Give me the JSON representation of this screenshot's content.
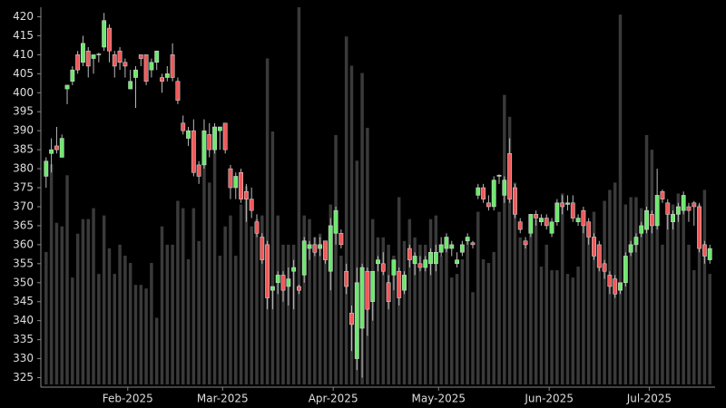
{
  "chart_data": {
    "type": "candlestick",
    "up_color": "#6ee86e",
    "down_color": "#f05a5a",
    "wick_color": "#bbbbbb",
    "volume_color": "#3a3a3a",
    "ylim": [
      322.5,
      422.5
    ],
    "yticks": [
      325,
      330,
      335,
      340,
      345,
      350,
      355,
      360,
      365,
      370,
      375,
      380,
      385,
      390,
      395,
      400,
      405,
      410,
      415,
      420
    ],
    "volume_lim": [
      0,
      104
    ],
    "xlim": [
      -1,
      127
    ],
    "xticks": [
      {
        "value": 15.5,
        "label": "Feb-2025"
      },
      {
        "value": 33.5,
        "label": "Mar-2025"
      },
      {
        "value": 54.5,
        "label": "Apr-2025"
      },
      {
        "value": 74.5,
        "label": "May-2025"
      },
      {
        "value": 95.5,
        "label": "Jun-2025"
      },
      {
        "value": 114.5,
        "label": "Jul-2025"
      }
    ],
    "candles": [
      {
        "o": 378,
        "h": 383,
        "l": 375,
        "c": 382,
        "v": 37
      },
      {
        "o": 384,
        "h": 388,
        "l": 379,
        "c": 385,
        "v": 61
      },
      {
        "o": 386,
        "h": 391,
        "l": 384,
        "c": 385,
        "v": 45
      },
      {
        "o": 383,
        "h": 389,
        "l": 383,
        "c": 388,
        "v": 44
      },
      {
        "o": 401,
        "h": 402,
        "l": 397,
        "c": 402,
        "v": 58
      },
      {
        "o": 403,
        "h": 407,
        "l": 402,
        "c": 406,
        "v": 30
      },
      {
        "o": 410,
        "h": 411,
        "l": 405,
        "c": 406,
        "v": 42
      },
      {
        "o": 408,
        "h": 415,
        "l": 407,
        "c": 413,
        "v": 46
      },
      {
        "o": 411,
        "h": 412,
        "l": 404,
        "c": 407,
        "v": 46
      },
      {
        "o": 409,
        "h": 410,
        "l": 405,
        "c": 410,
        "v": 49
      },
      {
        "o": 410,
        "h": 410.5,
        "l": 408,
        "c": 410.2,
        "v": 31
      },
      {
        "o": 412,
        "h": 421,
        "l": 411,
        "c": 419,
        "v": 47
      },
      {
        "o": 417,
        "h": 418,
        "l": 408,
        "c": 411,
        "v": 38
      },
      {
        "o": 410,
        "h": 411,
        "l": 404,
        "c": 407,
        "v": 31
      },
      {
        "o": 411,
        "h": 412,
        "l": 406,
        "c": 408,
        "v": 39
      },
      {
        "o": 408,
        "h": 409,
        "l": 404,
        "c": 407,
        "v": 36
      },
      {
        "o": 401,
        "h": 406,
        "l": 401,
        "c": 403,
        "v": 34
      },
      {
        "o": 404,
        "h": 407,
        "l": 396,
        "c": 406,
        "v": 28
      },
      {
        "o": 410,
        "h": 410,
        "l": 407,
        "c": 409,
        "v": 28
      },
      {
        "o": 410,
        "h": 410,
        "l": 402,
        "c": 403,
        "v": 27
      },
      {
        "o": 406,
        "h": 409,
        "l": 404,
        "c": 408,
        "v": 34
      },
      {
        "o": 408,
        "h": 411,
        "l": 406,
        "c": 411,
        "v": 19
      },
      {
        "o": 404,
        "h": 405,
        "l": 400,
        "c": 403,
        "v": 44
      },
      {
        "o": 404,
        "h": 407,
        "l": 403,
        "c": 405,
        "v": 39
      },
      {
        "o": 410,
        "h": 413,
        "l": 403,
        "c": 404,
        "v": 39
      },
      {
        "o": 403,
        "h": 404,
        "l": 397,
        "c": 398,
        "v": 51
      },
      {
        "o": 392,
        "h": 394,
        "l": 389,
        "c": 390,
        "v": 49
      },
      {
        "o": 388,
        "h": 391,
        "l": 386,
        "c": 390,
        "v": 35
      },
      {
        "o": 390,
        "h": 393,
        "l": 378,
        "c": 379,
        "v": 49
      },
      {
        "o": 381,
        "h": 382,
        "l": 376,
        "c": 378,
        "v": 40
      },
      {
        "o": 381,
        "h": 393,
        "l": 380,
        "c": 390,
        "v": 67
      },
      {
        "o": 389,
        "h": 392,
        "l": 383,
        "c": 385,
        "v": 56
      },
      {
        "o": 385,
        "h": 392,
        "l": 384,
        "c": 391,
        "v": 65
      },
      {
        "o": 390,
        "h": 391,
        "l": 385,
        "c": 391,
        "v": 36
      },
      {
        "o": 392,
        "h": 392,
        "l": 384,
        "c": 385,
        "v": 44
      },
      {
        "o": 380,
        "h": 381,
        "l": 372,
        "c": 375,
        "v": 47
      },
      {
        "o": 375,
        "h": 379,
        "l": 372,
        "c": 378,
        "v": 36
      },
      {
        "o": 379,
        "h": 380,
        "l": 371,
        "c": 372,
        "v": 50
      },
      {
        "o": 374,
        "h": 376,
        "l": 366,
        "c": 372,
        "v": 55
      },
      {
        "o": 372,
        "h": 375,
        "l": 367,
        "c": 369,
        "v": 44
      },
      {
        "o": 366,
        "h": 368,
        "l": 362,
        "c": 363,
        "v": 46
      },
      {
        "o": 362,
        "h": 363,
        "l": 355,
        "c": 356,
        "v": 47
      },
      {
        "o": 360,
        "h": 361,
        "l": 343,
        "c": 346,
        "v": 90
      },
      {
        "o": 348,
        "h": 349,
        "l": 343,
        "c": 349,
        "v": 70
      },
      {
        "o": 350,
        "h": 353,
        "l": 347,
        "c": 352,
        "v": 47
      },
      {
        "o": 352,
        "h": 353,
        "l": 345,
        "c": 348,
        "v": 39
      },
      {
        "o": 349,
        "h": 354,
        "l": 344,
        "c": 351,
        "v": 39
      },
      {
        "o": 353,
        "h": 356,
        "l": 343,
        "c": 354,
        "v": 39
      },
      {
        "o": 349,
        "h": 349.5,
        "l": 347,
        "c": 348,
        "v": 104
      },
      {
        "o": 352,
        "h": 362,
        "l": 350,
        "c": 361,
        "v": 47
      },
      {
        "o": 359,
        "h": 361,
        "l": 356,
        "c": 360,
        "v": 46
      },
      {
        "o": 360,
        "h": 362,
        "l": 357,
        "c": 358,
        "v": 41
      },
      {
        "o": 359,
        "h": 362,
        "l": 357,
        "c": 360,
        "v": 42
      },
      {
        "o": 361,
        "h": 361,
        "l": 355,
        "c": 356,
        "v": 40
      },
      {
        "o": 353,
        "h": 367,
        "l": 348,
        "c": 365,
        "v": 50
      },
      {
        "o": 363,
        "h": 370,
        "l": 360,
        "c": 369,
        "v": 69
      },
      {
        "o": 363,
        "h": 364,
        "l": 359,
        "c": 360,
        "v": 36
      },
      {
        "o": 353,
        "h": 355,
        "l": 347,
        "c": 349,
        "v": 96
      },
      {
        "o": 342,
        "h": 344,
        "l": 332,
        "c": 339,
        "v": 88
      },
      {
        "o": 330,
        "h": 354,
        "l": 327,
        "c": 350,
        "v": 62
      },
      {
        "o": 338,
        "h": 355,
        "l": 325,
        "c": 354,
        "v": 86
      },
      {
        "o": 353,
        "h": 354,
        "l": 336,
        "c": 343,
        "v": 71
      },
      {
        "o": 345,
        "h": 353,
        "l": 340,
        "c": 353,
        "v": 46
      },
      {
        "o": 355,
        "h": 357,
        "l": 353,
        "c": 356,
        "v": 41
      },
      {
        "o": 355,
        "h": 358,
        "l": 352,
        "c": 353,
        "v": 41
      },
      {
        "o": 350,
        "h": 352,
        "l": 343,
        "c": 345,
        "v": 39
      },
      {
        "o": 352,
        "h": 356,
        "l": 348,
        "c": 356,
        "v": 36
      },
      {
        "o": 353,
        "h": 354,
        "l": 344,
        "c": 346,
        "v": 52
      },
      {
        "o": 348,
        "h": 353,
        "l": 347,
        "c": 352,
        "v": 40
      },
      {
        "o": 359,
        "h": 360,
        "l": 354,
        "c": 356,
        "v": 46
      },
      {
        "o": 355,
        "h": 358,
        "l": 352,
        "c": 357,
        "v": 41
      },
      {
        "o": 355,
        "h": 357,
        "l": 353,
        "c": 354,
        "v": 39
      },
      {
        "o": 354,
        "h": 357,
        "l": 353,
        "c": 356,
        "v": 39
      },
      {
        "o": 355,
        "h": 359,
        "l": 352,
        "c": 358,
        "v": 46
      },
      {
        "o": 355,
        "h": 360,
        "l": 353,
        "c": 358,
        "v": 47
      },
      {
        "o": 358,
        "h": 362,
        "l": 357,
        "c": 360,
        "v": 36
      },
      {
        "o": 359,
        "h": 363,
        "l": 358,
        "c": 362,
        "v": 41
      },
      {
        "o": 359,
        "h": 361,
        "l": 357,
        "c": 360,
        "v": 30
      },
      {
        "o": 355,
        "h": 358,
        "l": 354,
        "c": 356,
        "v": 31
      },
      {
        "o": 358,
        "h": 361,
        "l": 357,
        "c": 360,
        "v": 35
      },
      {
        "o": 361,
        "h": 363,
        "l": 360,
        "c": 362,
        "v": 41
      },
      {
        "o": 360.5,
        "h": 361,
        "l": 359,
        "c": 360,
        "v": 26
      },
      {
        "o": 373,
        "h": 376,
        "l": 372,
        "c": 375,
        "v": 48
      },
      {
        "o": 375,
        "h": 376,
        "l": 371,
        "c": 372,
        "v": 35
      },
      {
        "o": 371,
        "h": 373,
        "l": 369,
        "c": 370,
        "v": 34
      },
      {
        "o": 370,
        "h": 378,
        "l": 369,
        "c": 377,
        "v": 37
      },
      {
        "o": 378,
        "h": 378.5,
        "l": 376,
        "c": 378.3,
        "v": 48
      },
      {
        "o": 373,
        "h": 378,
        "l": 371,
        "c": 377,
        "v": 80
      },
      {
        "o": 384,
        "h": 388,
        "l": 371,
        "c": 372,
        "v": 74
      },
      {
        "o": 375,
        "h": 376,
        "l": 367,
        "c": 368,
        "v": 56
      },
      {
        "o": 366,
        "h": 367,
        "l": 363,
        "c": 364,
        "v": 41
      },
      {
        "o": 361,
        "h": 362,
        "l": 359,
        "c": 360,
        "v": 39
      },
      {
        "o": 363,
        "h": 368,
        "l": 362,
        "c": 368,
        "v": 42
      },
      {
        "o": 368,
        "h": 369,
        "l": 365,
        "c": 367,
        "v": 46
      },
      {
        "o": 366,
        "h": 368,
        "l": 365,
        "c": 367,
        "v": 33
      },
      {
        "o": 367,
        "h": 368,
        "l": 364,
        "c": 365,
        "v": 39
      },
      {
        "o": 363,
        "h": 367,
        "l": 362,
        "c": 366,
        "v": 32
      },
      {
        "o": 366,
        "h": 372,
        "l": 365,
        "c": 371,
        "v": 32
      },
      {
        "o": 371,
        "h": 373,
        "l": 368,
        "c": 370,
        "v": 53
      },
      {
        "o": 370.6,
        "h": 373,
        "l": 369,
        "c": 371,
        "v": 31
      },
      {
        "o": 371,
        "h": 373,
        "l": 366,
        "c": 367,
        "v": 30
      },
      {
        "o": 366,
        "h": 368,
        "l": 365,
        "c": 367,
        "v": 33
      },
      {
        "o": 369,
        "h": 370,
        "l": 363,
        "c": 365,
        "v": 48
      },
      {
        "o": 366,
        "h": 367,
        "l": 360,
        "c": 362,
        "v": 41
      },
      {
        "o": 362,
        "h": 363,
        "l": 356,
        "c": 357,
        "v": 48
      },
      {
        "o": 360,
        "h": 361,
        "l": 353,
        "c": 354,
        "v": 33
      },
      {
        "o": 355,
        "h": 356,
        "l": 351,
        "c": 353,
        "v": 51
      },
      {
        "o": 352,
        "h": 353,
        "l": 347,
        "c": 349,
        "v": 54
      },
      {
        "o": 351,
        "h": 352,
        "l": 346,
        "c": 347,
        "v": 56
      },
      {
        "o": 348,
        "h": 350,
        "l": 347,
        "c": 350,
        "v": 102
      },
      {
        "o": 350,
        "h": 358,
        "l": 349,
        "c": 357,
        "v": 50
      },
      {
        "o": 358,
        "h": 361,
        "l": 357,
        "c": 360,
        "v": 52
      },
      {
        "o": 360,
        "h": 363,
        "l": 358,
        "c": 362,
        "v": 52
      },
      {
        "o": 363,
        "h": 366,
        "l": 362,
        "c": 365,
        "v": 49
      },
      {
        "o": 364,
        "h": 370,
        "l": 363,
        "c": 369,
        "v": 69
      },
      {
        "o": 368,
        "h": 369,
        "l": 363,
        "c": 365,
        "v": 65
      },
      {
        "o": 365,
        "h": 380,
        "l": 364,
        "c": 373,
        "v": 52
      },
      {
        "o": 374,
        "h": 374.5,
        "l": 371,
        "c": 372,
        "v": 39
      },
      {
        "o": 371,
        "h": 372,
        "l": 364,
        "c": 368,
        "v": 49
      },
      {
        "o": 366,
        "h": 369,
        "l": 364,
        "c": 368,
        "v": 50
      },
      {
        "o": 368,
        "h": 371,
        "l": 366,
        "c": 370,
        "v": 53
      },
      {
        "o": 369,
        "h": 374,
        "l": 368,
        "c": 373,
        "v": 52
      },
      {
        "o": 370,
        "h": 371,
        "l": 366,
        "c": 369,
        "v": 39
      },
      {
        "o": 371,
        "h": 371.5,
        "l": 365,
        "c": 370,
        "v": 32
      },
      {
        "o": 370,
        "h": 371,
        "l": 358,
        "c": 359,
        "v": 50
      },
      {
        "o": 360,
        "h": 361,
        "l": 355,
        "c": 357,
        "v": 54
      },
      {
        "o": 356,
        "h": 360,
        "l": 355,
        "c": 359,
        "v": 31
      }
    ]
  }
}
